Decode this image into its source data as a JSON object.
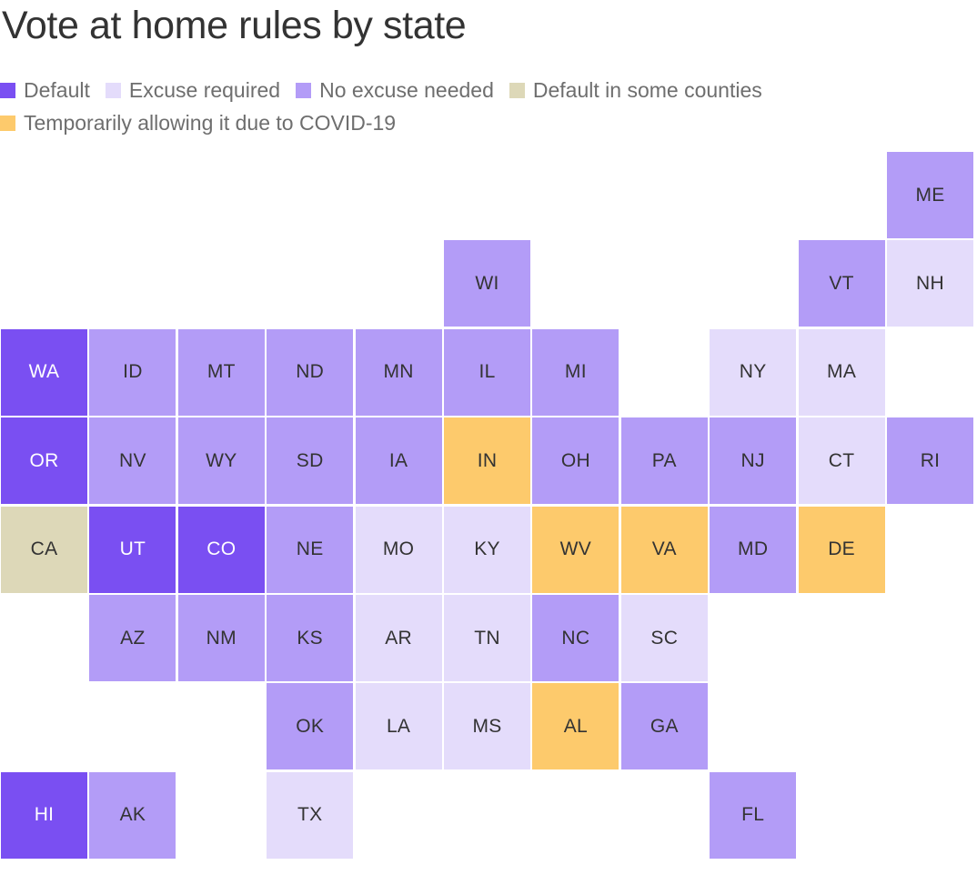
{
  "title": "Vote at home rules by state",
  "legend": [
    {
      "key": "default",
      "label": "Default",
      "color": "#7a4ff2"
    },
    {
      "key": "excuse",
      "label": "Excuse required",
      "color": "#e4dcfb"
    },
    {
      "key": "noexcuse",
      "label": "No excuse needed",
      "color": "#b39cf7"
    },
    {
      "key": "somecounties",
      "label": "Default in some counties",
      "color": "#ddd8b8"
    },
    {
      "key": "covid",
      "label": "Temporarily allowing it due to COVID-19",
      "color": "#fdca6c"
    }
  ],
  "text_colors": {
    "on_default": "#ffffff",
    "on_other": "#333333"
  },
  "states": [
    {
      "abbr": "ME",
      "row": 0,
      "col": 10,
      "cat": "noexcuse"
    },
    {
      "abbr": "WI",
      "row": 1,
      "col": 5,
      "cat": "noexcuse"
    },
    {
      "abbr": "VT",
      "row": 1,
      "col": 9,
      "cat": "noexcuse"
    },
    {
      "abbr": "NH",
      "row": 1,
      "col": 10,
      "cat": "excuse"
    },
    {
      "abbr": "WA",
      "row": 2,
      "col": 0,
      "cat": "default"
    },
    {
      "abbr": "ID",
      "row": 2,
      "col": 1,
      "cat": "noexcuse"
    },
    {
      "abbr": "MT",
      "row": 2,
      "col": 2,
      "cat": "noexcuse"
    },
    {
      "abbr": "ND",
      "row": 2,
      "col": 3,
      "cat": "noexcuse"
    },
    {
      "abbr": "MN",
      "row": 2,
      "col": 4,
      "cat": "noexcuse"
    },
    {
      "abbr": "IL",
      "row": 2,
      "col": 5,
      "cat": "noexcuse"
    },
    {
      "abbr": "MI",
      "row": 2,
      "col": 6,
      "cat": "noexcuse"
    },
    {
      "abbr": "NY",
      "row": 2,
      "col": 8,
      "cat": "excuse"
    },
    {
      "abbr": "MA",
      "row": 2,
      "col": 9,
      "cat": "excuse"
    },
    {
      "abbr": "OR",
      "row": 3,
      "col": 0,
      "cat": "default"
    },
    {
      "abbr": "NV",
      "row": 3,
      "col": 1,
      "cat": "noexcuse"
    },
    {
      "abbr": "WY",
      "row": 3,
      "col": 2,
      "cat": "noexcuse"
    },
    {
      "abbr": "SD",
      "row": 3,
      "col": 3,
      "cat": "noexcuse"
    },
    {
      "abbr": "IA",
      "row": 3,
      "col": 4,
      "cat": "noexcuse"
    },
    {
      "abbr": "IN",
      "row": 3,
      "col": 5,
      "cat": "covid"
    },
    {
      "abbr": "OH",
      "row": 3,
      "col": 6,
      "cat": "noexcuse"
    },
    {
      "abbr": "PA",
      "row": 3,
      "col": 7,
      "cat": "noexcuse"
    },
    {
      "abbr": "NJ",
      "row": 3,
      "col": 8,
      "cat": "noexcuse"
    },
    {
      "abbr": "CT",
      "row": 3,
      "col": 9,
      "cat": "excuse"
    },
    {
      "abbr": "RI",
      "row": 3,
      "col": 10,
      "cat": "noexcuse"
    },
    {
      "abbr": "CA",
      "row": 4,
      "col": 0,
      "cat": "somecounties"
    },
    {
      "abbr": "UT",
      "row": 4,
      "col": 1,
      "cat": "default"
    },
    {
      "abbr": "CO",
      "row": 4,
      "col": 2,
      "cat": "default"
    },
    {
      "abbr": "NE",
      "row": 4,
      "col": 3,
      "cat": "noexcuse"
    },
    {
      "abbr": "MO",
      "row": 4,
      "col": 4,
      "cat": "excuse"
    },
    {
      "abbr": "KY",
      "row": 4,
      "col": 5,
      "cat": "excuse"
    },
    {
      "abbr": "WV",
      "row": 4,
      "col": 6,
      "cat": "covid"
    },
    {
      "abbr": "VA",
      "row": 4,
      "col": 7,
      "cat": "covid"
    },
    {
      "abbr": "MD",
      "row": 4,
      "col": 8,
      "cat": "noexcuse"
    },
    {
      "abbr": "DE",
      "row": 4,
      "col": 9,
      "cat": "covid"
    },
    {
      "abbr": "AZ",
      "row": 5,
      "col": 1,
      "cat": "noexcuse"
    },
    {
      "abbr": "NM",
      "row": 5,
      "col": 2,
      "cat": "noexcuse"
    },
    {
      "abbr": "KS",
      "row": 5,
      "col": 3,
      "cat": "noexcuse"
    },
    {
      "abbr": "AR",
      "row": 5,
      "col": 4,
      "cat": "excuse"
    },
    {
      "abbr": "TN",
      "row": 5,
      "col": 5,
      "cat": "excuse"
    },
    {
      "abbr": "NC",
      "row": 5,
      "col": 6,
      "cat": "noexcuse"
    },
    {
      "abbr": "SC",
      "row": 5,
      "col": 7,
      "cat": "excuse"
    },
    {
      "abbr": "OK",
      "row": 6,
      "col": 3,
      "cat": "noexcuse"
    },
    {
      "abbr": "LA",
      "row": 6,
      "col": 4,
      "cat": "excuse"
    },
    {
      "abbr": "MS",
      "row": 6,
      "col": 5,
      "cat": "excuse"
    },
    {
      "abbr": "AL",
      "row": 6,
      "col": 6,
      "cat": "covid"
    },
    {
      "abbr": "GA",
      "row": 6,
      "col": 7,
      "cat": "noexcuse"
    },
    {
      "abbr": "HI",
      "row": 7,
      "col": 0,
      "cat": "default"
    },
    {
      "abbr": "AK",
      "row": 7,
      "col": 1,
      "cat": "noexcuse"
    },
    {
      "abbr": "TX",
      "row": 7,
      "col": 3,
      "cat": "excuse"
    },
    {
      "abbr": "FL",
      "row": 7,
      "col": 8,
      "cat": "noexcuse"
    }
  ]
}
